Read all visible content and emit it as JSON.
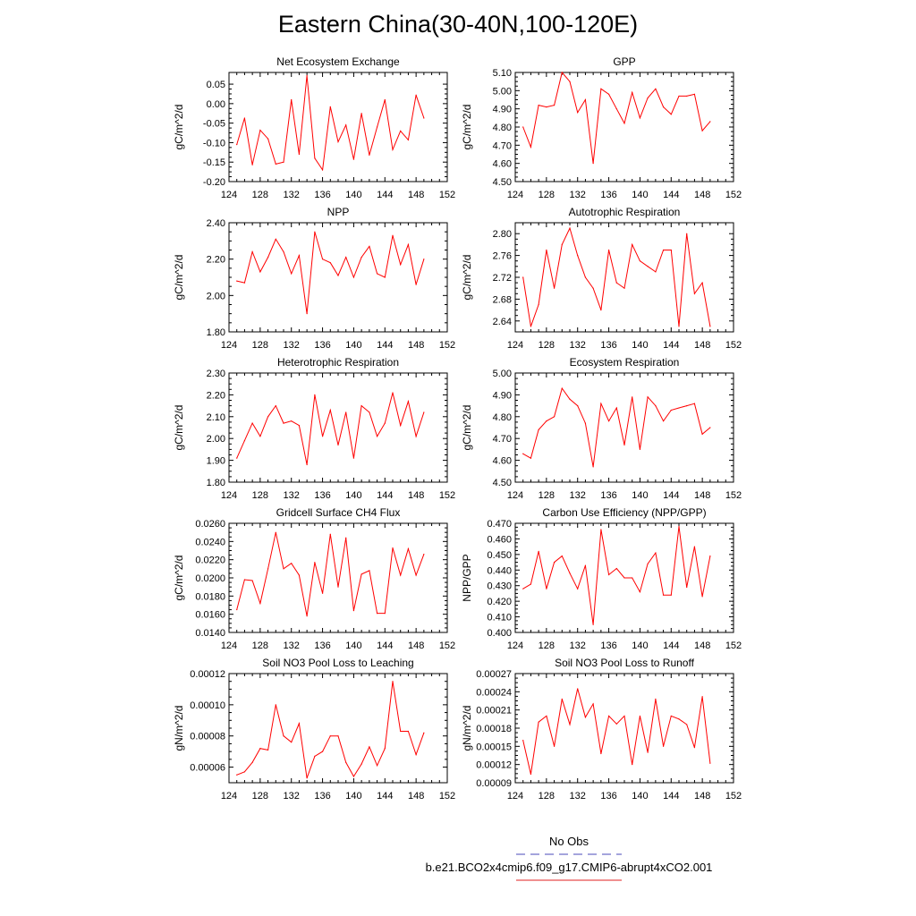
{
  "figure": {
    "title": "Eastern China(30-40N,100-120E)"
  },
  "legend": {
    "entries": [
      {
        "label": "No Obs",
        "color": "#4a4ab8",
        "dashed": true
      },
      {
        "label": "b.e21.BCO2x4cmip6.f09_g17.CMIP6-abrupt4xCO2.001",
        "color": "#e02020",
        "dashed": false
      }
    ]
  },
  "colors": {
    "series": "#ff0000",
    "axis": "#000000"
  },
  "chart_data": [
    {
      "type": "line",
      "title": "Net Ecosystem Exchange",
      "xlabel": "",
      "ylabel": "gC/m^2/d",
      "xlim": [
        124,
        152
      ],
      "xticks": [
        124,
        128,
        132,
        136,
        140,
        144,
        148,
        152
      ],
      "xtick_labels": [
        "124",
        "128",
        "132",
        "136",
        "140",
        "144",
        "148",
        "152"
      ],
      "ylim": [
        -0.2,
        0.08
      ],
      "yticks": [
        -0.2,
        -0.15,
        -0.1,
        -0.05,
        0.0,
        0.05
      ],
      "ytick_labels": [
        "-0.20",
        "-0.15",
        "-0.10",
        "-0.05",
        "0.00",
        "0.05"
      ],
      "series": [
        {
          "x": [
            125,
            126,
            127,
            128,
            129,
            130,
            131,
            132,
            133,
            134,
            135,
            136,
            137,
            138,
            139,
            140,
            141,
            142,
            143,
            144,
            145,
            146,
            147,
            148,
            149
          ],
          "values": [
            -0.105,
            -0.037,
            -0.157,
            -0.068,
            -0.09,
            -0.155,
            -0.15,
            0.01,
            -0.13,
            0.072,
            -0.14,
            -0.17,
            -0.008,
            -0.098,
            -0.055,
            -0.143,
            -0.025,
            -0.132,
            -0.06,
            0.01,
            -0.118,
            -0.07,
            -0.093,
            0.022,
            -0.037
          ]
        }
      ]
    },
    {
      "type": "line",
      "title": "GPP",
      "xlabel": "",
      "ylabel": "gC/m^2/d",
      "xlim": [
        124,
        152
      ],
      "xticks": [
        124,
        128,
        132,
        136,
        140,
        144,
        148,
        152
      ],
      "xtick_labels": [
        "124",
        "128",
        "132",
        "136",
        "140",
        "144",
        "148",
        "152"
      ],
      "ylim": [
        4.5,
        5.1
      ],
      "yticks": [
        4.5,
        4.6,
        4.7,
        4.8,
        4.9,
        5.0,
        5.1
      ],
      "ytick_labels": [
        "4.50",
        "4.60",
        "4.70",
        "4.80",
        "4.90",
        "5.00",
        "5.10"
      ],
      "series": [
        {
          "x": [
            125,
            126,
            127,
            128,
            129,
            130,
            131,
            132,
            133,
            134,
            135,
            136,
            137,
            138,
            139,
            140,
            141,
            142,
            143,
            144,
            145,
            146,
            147,
            148,
            149
          ],
          "values": [
            4.8,
            4.69,
            4.92,
            4.91,
            4.92,
            5.1,
            5.05,
            4.88,
            4.95,
            4.6,
            5.01,
            4.98,
            4.9,
            4.82,
            4.99,
            4.85,
            4.96,
            5.01,
            4.91,
            4.87,
            4.97,
            4.97,
            4.98,
            4.78,
            4.83
          ]
        }
      ]
    },
    {
      "type": "line",
      "title": "NPP",
      "xlabel": "",
      "ylabel": "gC/m^2/d",
      "xlim": [
        124,
        152
      ],
      "xticks": [
        124,
        128,
        132,
        136,
        140,
        144,
        148,
        152
      ],
      "xtick_labels": [
        "124",
        "128",
        "132",
        "136",
        "140",
        "144",
        "148",
        "152"
      ],
      "ylim": [
        1.8,
        2.4
      ],
      "yticks": [
        1.8,
        2.0,
        2.2,
        2.4
      ],
      "ytick_labels": [
        "1.80",
        "2.00",
        "2.20",
        "2.40"
      ],
      "series": [
        {
          "x": [
            125,
            126,
            127,
            128,
            129,
            130,
            131,
            132,
            133,
            134,
            135,
            136,
            137,
            138,
            139,
            140,
            141,
            142,
            143,
            144,
            145,
            146,
            147,
            148,
            149
          ],
          "values": [
            2.08,
            2.07,
            2.24,
            2.13,
            2.21,
            2.31,
            2.24,
            2.12,
            2.22,
            1.9,
            2.35,
            2.2,
            2.18,
            2.11,
            2.21,
            2.1,
            2.21,
            2.27,
            2.12,
            2.1,
            2.33,
            2.17,
            2.28,
            2.06,
            2.2
          ]
        }
      ]
    },
    {
      "type": "line",
      "title": "Autotrophic Respiration",
      "xlabel": "",
      "ylabel": "gC/m^2/d",
      "xlim": [
        124,
        152
      ],
      "xticks": [
        124,
        128,
        132,
        136,
        140,
        144,
        148,
        152
      ],
      "xtick_labels": [
        "124",
        "128",
        "132",
        "136",
        "140",
        "144",
        "148",
        "152"
      ],
      "ylim": [
        2.62,
        2.82
      ],
      "yticks": [
        2.64,
        2.68,
        2.72,
        2.76,
        2.8
      ],
      "ytick_labels": [
        "2.64",
        "2.68",
        "2.72",
        "2.76",
        "2.80"
      ],
      "series": [
        {
          "x": [
            125,
            126,
            127,
            128,
            129,
            130,
            131,
            132,
            133,
            134,
            135,
            136,
            137,
            138,
            139,
            140,
            141,
            142,
            143,
            144,
            145,
            146,
            147,
            148,
            149
          ],
          "values": [
            2.72,
            2.63,
            2.67,
            2.77,
            2.7,
            2.78,
            2.81,
            2.76,
            2.72,
            2.7,
            2.66,
            2.77,
            2.71,
            2.7,
            2.78,
            2.75,
            2.74,
            2.73,
            2.77,
            2.77,
            2.63,
            2.8,
            2.69,
            2.71,
            2.63
          ]
        }
      ]
    },
    {
      "type": "line",
      "title": "Heterotrophic Respiration",
      "xlabel": "",
      "ylabel": "gC/m^2/d",
      "xlim": [
        124,
        152
      ],
      "xticks": [
        124,
        128,
        132,
        136,
        140,
        144,
        148,
        152
      ],
      "xtick_labels": [
        "124",
        "128",
        "132",
        "136",
        "140",
        "144",
        "148",
        "152"
      ],
      "ylim": [
        1.8,
        2.3
      ],
      "yticks": [
        1.8,
        1.9,
        2.0,
        2.1,
        2.2,
        2.3
      ],
      "ytick_labels": [
        "1.80",
        "1.90",
        "2.00",
        "2.10",
        "2.20",
        "2.30"
      ],
      "series": [
        {
          "x": [
            125,
            126,
            127,
            128,
            129,
            130,
            131,
            132,
            133,
            134,
            135,
            136,
            137,
            138,
            139,
            140,
            141,
            142,
            143,
            144,
            145,
            146,
            147,
            148,
            149
          ],
          "values": [
            1.91,
            1.99,
            2.07,
            2.01,
            2.1,
            2.15,
            2.07,
            2.08,
            2.06,
            1.88,
            2.2,
            2.01,
            2.13,
            1.97,
            2.12,
            1.91,
            2.15,
            2.12,
            2.01,
            2.07,
            2.21,
            2.06,
            2.17,
            2.01,
            2.12
          ]
        }
      ]
    },
    {
      "type": "line",
      "title": "Ecosystem Respiration",
      "xlabel": "",
      "ylabel": "gC/m^2/d",
      "xlim": [
        124,
        152
      ],
      "xticks": [
        124,
        128,
        132,
        136,
        140,
        144,
        148,
        152
      ],
      "xtick_labels": [
        "124",
        "128",
        "132",
        "136",
        "140",
        "144",
        "148",
        "152"
      ],
      "ylim": [
        4.5,
        5.0
      ],
      "yticks": [
        4.5,
        4.6,
        4.7,
        4.8,
        4.9,
        5.0
      ],
      "ytick_labels": [
        "4.50",
        "4.60",
        "4.70",
        "4.80",
        "4.90",
        "5.00"
      ],
      "series": [
        {
          "x": [
            125,
            126,
            127,
            128,
            129,
            130,
            131,
            132,
            133,
            134,
            135,
            136,
            137,
            138,
            139,
            140,
            141,
            142,
            143,
            144,
            145,
            146,
            147,
            148,
            149
          ],
          "values": [
            4.63,
            4.61,
            4.74,
            4.78,
            4.8,
            4.93,
            4.88,
            4.85,
            4.77,
            4.57,
            4.86,
            4.78,
            4.84,
            4.67,
            4.89,
            4.65,
            4.89,
            4.85,
            4.78,
            4.83,
            4.84,
            4.85,
            4.86,
            4.72,
            4.75
          ]
        }
      ]
    },
    {
      "type": "line",
      "title": "Gridcell Surface CH4 Flux",
      "xlabel": "",
      "ylabel": "gC/m^2/d",
      "xlim": [
        124,
        152
      ],
      "xticks": [
        124,
        128,
        132,
        136,
        140,
        144,
        148,
        152
      ],
      "xtick_labels": [
        "124",
        "128",
        "132",
        "136",
        "140",
        "144",
        "148",
        "152"
      ],
      "ylim": [
        0.014,
        0.026
      ],
      "yticks": [
        0.014,
        0.016,
        0.018,
        0.02,
        0.022,
        0.024,
        0.026
      ],
      "ytick_labels": [
        "0.0140",
        "0.0160",
        "0.0180",
        "0.0200",
        "0.0220",
        "0.0240",
        "0.0260"
      ],
      "series": [
        {
          "x": [
            125,
            126,
            127,
            128,
            129,
            130,
            131,
            132,
            133,
            134,
            135,
            136,
            137,
            138,
            139,
            140,
            141,
            142,
            143,
            144,
            145,
            146,
            147,
            148,
            149
          ],
          "values": [
            0.0165,
            0.0198,
            0.0197,
            0.0172,
            0.021,
            0.025,
            0.021,
            0.0216,
            0.0203,
            0.0158,
            0.0217,
            0.0183,
            0.0248,
            0.019,
            0.0244,
            0.0164,
            0.0204,
            0.0208,
            0.0161,
            0.0161,
            0.0233,
            0.0203,
            0.0232,
            0.0203,
            0.0226
          ]
        }
      ]
    },
    {
      "type": "line",
      "title": "Carbon Use Efficiency (NPP/GPP)",
      "xlabel": "",
      "ylabel": "NPP/GPP",
      "xlim": [
        124,
        152
      ],
      "xticks": [
        124,
        128,
        132,
        136,
        140,
        144,
        148,
        152
      ],
      "xtick_labels": [
        "124",
        "128",
        "132",
        "136",
        "140",
        "144",
        "148",
        "152"
      ],
      "ylim": [
        0.4,
        0.47
      ],
      "yticks": [
        0.4,
        0.41,
        0.42,
        0.43,
        0.44,
        0.45,
        0.46,
        0.47
      ],
      "ytick_labels": [
        "0.400",
        "0.410",
        "0.420",
        "0.430",
        "0.440",
        "0.450",
        "0.460",
        "0.470"
      ],
      "series": [
        {
          "x": [
            125,
            126,
            127,
            128,
            129,
            130,
            131,
            132,
            133,
            134,
            135,
            136,
            137,
            138,
            139,
            140,
            141,
            142,
            143,
            144,
            145,
            146,
            147,
            148,
            149
          ],
          "values": [
            0.428,
            0.431,
            0.452,
            0.428,
            0.445,
            0.449,
            0.438,
            0.428,
            0.443,
            0.405,
            0.466,
            0.437,
            0.441,
            0.435,
            0.435,
            0.426,
            0.444,
            0.451,
            0.424,
            0.424,
            0.468,
            0.429,
            0.455,
            0.423,
            0.449
          ]
        }
      ]
    },
    {
      "type": "line",
      "title": "Soil NO3 Pool Loss to Leaching",
      "xlabel": "",
      "ylabel": "gN/m^2/d",
      "xlim": [
        124,
        152
      ],
      "xticks": [
        124,
        128,
        132,
        136,
        140,
        144,
        148,
        152
      ],
      "xtick_labels": [
        "124",
        "128",
        "132",
        "136",
        "140",
        "144",
        "148",
        "152"
      ],
      "ylim": [
        5e-05,
        0.00012
      ],
      "yticks": [
        6e-05,
        8e-05,
        0.0001,
        0.00012
      ],
      "ytick_labels": [
        "0.00006",
        "0.00008",
        "0.00010",
        "0.00012"
      ],
      "series": [
        {
          "x": [
            125,
            126,
            127,
            128,
            129,
            130,
            131,
            132,
            133,
            134,
            135,
            136,
            137,
            138,
            139,
            140,
            141,
            142,
            143,
            144,
            145,
            146,
            147,
            148,
            149
          ],
          "values": [
            5.5e-05,
            5.7e-05,
            6.3e-05,
            7.2e-05,
            7.1e-05,
            0.0001,
            8e-05,
            7.6e-05,
            8.8e-05,
            5.3e-05,
            6.7e-05,
            7e-05,
            8e-05,
            8e-05,
            6.3e-05,
            5.4e-05,
            6.2e-05,
            7.3e-05,
            6.1e-05,
            7.2e-05,
            0.000115,
            8.3e-05,
            8.3e-05,
            6.8e-05,
            8.2e-05
          ]
        }
      ]
    },
    {
      "type": "line",
      "title": "Soil NO3 Pool Loss to Runoff",
      "xlabel": "",
      "ylabel": "gN/m^2/d",
      "xlim": [
        124,
        152
      ],
      "xticks": [
        124,
        128,
        132,
        136,
        140,
        144,
        148,
        152
      ],
      "xtick_labels": [
        "124",
        "128",
        "132",
        "136",
        "140",
        "144",
        "148",
        "152"
      ],
      "ylim": [
        9e-05,
        0.00027
      ],
      "yticks": [
        9e-05,
        0.00012,
        0.00015,
        0.00018,
        0.00021,
        0.00024,
        0.00027
      ],
      "ytick_labels": [
        "0.00009",
        "0.00012",
        "0.00015",
        "0.00018",
        "0.00021",
        "0.00024",
        "0.00027"
      ],
      "series": [
        {
          "x": [
            125,
            126,
            127,
            128,
            129,
            130,
            131,
            132,
            133,
            134,
            135,
            136,
            137,
            138,
            139,
            140,
            141,
            142,
            143,
            144,
            145,
            146,
            147,
            148,
            149
          ],
          "values": [
            0.00016,
            0.000104,
            0.00019,
            0.0002,
            0.00015,
            0.000228,
            0.000186,
            0.000245,
            0.000198,
            0.00022,
            0.000138,
            0.0002,
            0.000187,
            0.0002,
            0.00012,
            0.0002,
            0.00014,
            0.000228,
            0.00015,
            0.0002,
            0.000195,
            0.000186,
            0.000148,
            0.000232,
            0.000122
          ]
        }
      ]
    }
  ]
}
